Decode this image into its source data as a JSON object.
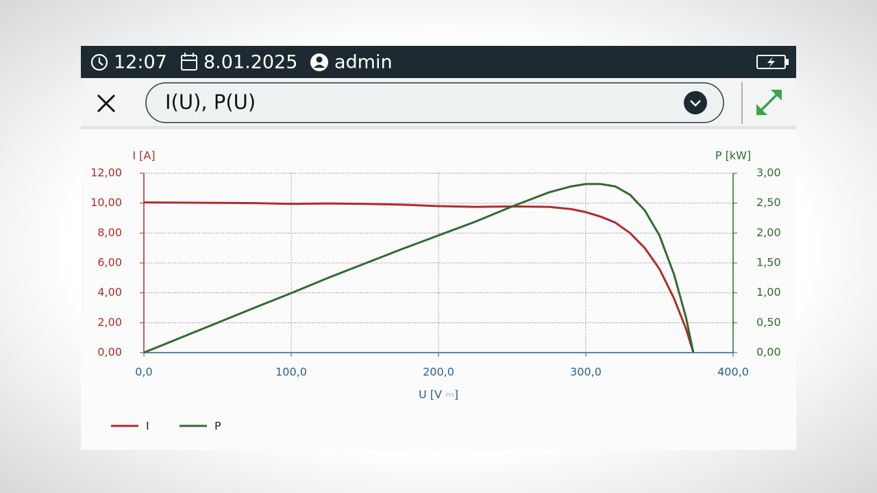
{
  "status_bar": {
    "time": "12:07",
    "date": "8.01.2025",
    "user": "admin"
  },
  "header": {
    "selector": "I(U), P(U)"
  },
  "chart_data": {
    "type": "line",
    "ylabel": "I [A]",
    "y2label": "P [kW]",
    "xlabel": "U [V ⎓]",
    "x": [
      0,
      50,
      75,
      100,
      125,
      150,
      175,
      200,
      225,
      250,
      275,
      290,
      300,
      310,
      320,
      330,
      340,
      350,
      360,
      368,
      373
    ],
    "series": [
      {
        "name": "I",
        "color": "#b22a2a",
        "values": [
          10.05,
          10.02,
          10.0,
          9.95,
          9.98,
          9.95,
          9.9,
          9.8,
          9.75,
          9.78,
          9.75,
          9.6,
          9.4,
          9.1,
          8.7,
          8.0,
          7.0,
          5.6,
          3.6,
          1.6,
          0
        ]
      },
      {
        "name": "P",
        "color": "#2e6b2e",
        "axis": "y2",
        "values": [
          0,
          0.5,
          0.75,
          0.995,
          1.25,
          1.49,
          1.73,
          1.96,
          2.19,
          2.445,
          2.68,
          2.78,
          2.82,
          2.82,
          2.78,
          2.64,
          2.38,
          1.96,
          1.3,
          0.59,
          0
        ]
      }
    ],
    "xlim": [
      0,
      400
    ],
    "xticks": [
      {
        "value": 0,
        "label": "0,0"
      },
      {
        "value": 100,
        "label": "100,0"
      },
      {
        "value": 200,
        "label": "200,0"
      },
      {
        "value": 300,
        "label": "300,0"
      },
      {
        "value": 400,
        "label": "400,0"
      }
    ],
    "ylim": [
      0,
      12
    ],
    "yticks": [
      {
        "value": 0,
        "label": "0,00"
      },
      {
        "value": 2,
        "label": "2,00"
      },
      {
        "value": 4,
        "label": "4,00"
      },
      {
        "value": 6,
        "label": "6,00"
      },
      {
        "value": 8,
        "label": "8,00"
      },
      {
        "value": 10,
        "label": "10,00"
      },
      {
        "value": 12,
        "label": "12,00"
      }
    ],
    "y2lim": [
      0,
      3
    ],
    "y2ticks": [
      {
        "value": 0,
        "label": "0,00"
      },
      {
        "value": 0.5,
        "label": "0,50"
      },
      {
        "value": 1,
        "label": "1,00"
      },
      {
        "value": 1.5,
        "label": "1,50"
      },
      {
        "value": 2,
        "label": "2,00"
      },
      {
        "value": 2.5,
        "label": "2,50"
      },
      {
        "value": 3,
        "label": "3,00"
      }
    ],
    "grid": true
  }
}
